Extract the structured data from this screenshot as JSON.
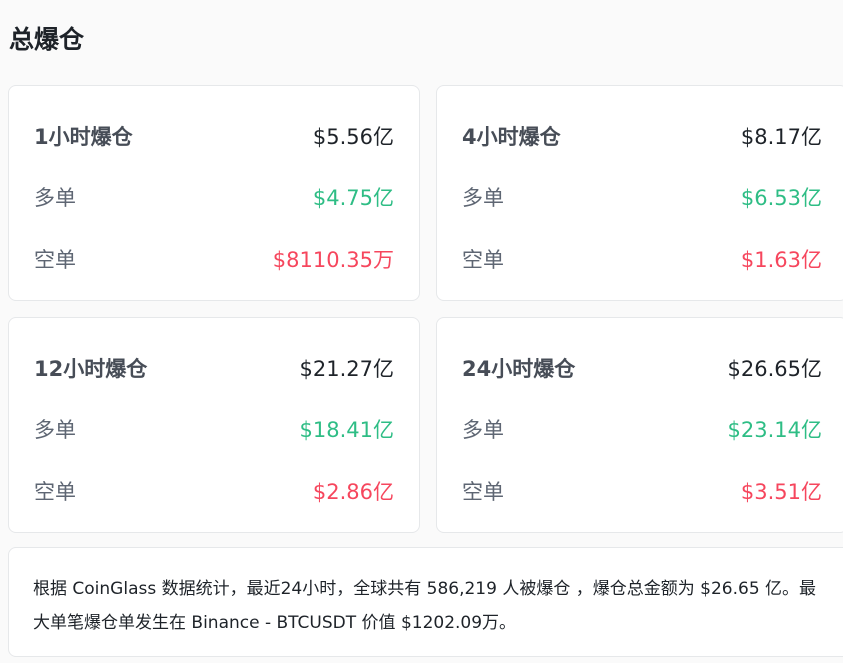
{
  "title": "总爆仓",
  "colors": {
    "long": "#2ebd85",
    "short": "#f6465d"
  },
  "cards": [
    {
      "label": "1小时爆仓",
      "total": "$5.56亿",
      "long_label": "多单",
      "long": "$4.75亿",
      "short_label": "空单",
      "short": "$8110.35万"
    },
    {
      "label": "4小时爆仓",
      "total": "$8.17亿",
      "long_label": "多单",
      "long": "$6.53亿",
      "short_label": "空单",
      "short": "$1.63亿"
    },
    {
      "label": "12小时爆仓",
      "total": "$21.27亿",
      "long_label": "多单",
      "long": "$18.41亿",
      "short_label": "空单",
      "short": "$2.86亿"
    },
    {
      "label": "24小时爆仓",
      "total": "$26.65亿",
      "long_label": "多单",
      "long": "$23.14亿",
      "short_label": "空单",
      "short": "$3.51亿"
    }
  ],
  "summary": "根据 CoinGlass 数据统计，最近24小时，全球共有 586,219 人被爆仓 ，爆仓总金额为 $26.65 亿。最大单笔爆仓单发生在 Binance - BTCUSDT 价值 $1202.09万。"
}
